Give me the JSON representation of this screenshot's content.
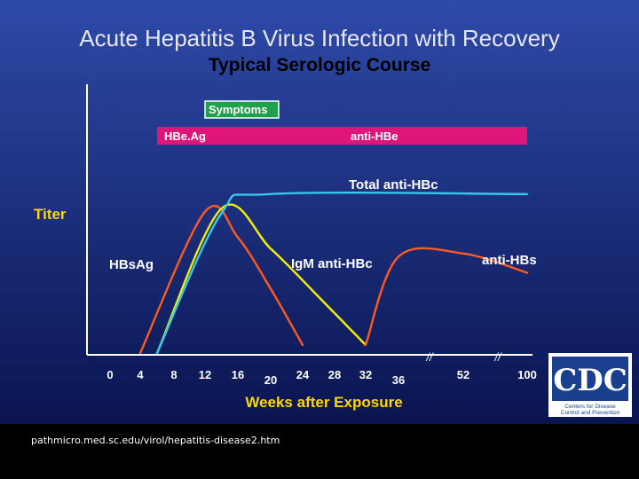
{
  "slide": {
    "title": "Acute Hepatitis B Virus Infection with Recovery",
    "subtitle": "Typical Serologic Course",
    "source_url": "pathmicro.med.sc.edu/virol/hepatitis-disease2.htm"
  },
  "logo": {
    "text": "CDC",
    "caption_line1": "Centers for Disease",
    "caption_line2": "Control and Prevention"
  },
  "colors": {
    "background_top": "#2e4aa8",
    "background_bottom": "#0a1450",
    "title": "#e6e6f0",
    "label": "#ffffff",
    "axis_label": "#ffd700",
    "symptoms_bar": "#1fa04a",
    "hbeag_bar": "#e0157a",
    "hbsag_curve": "#ff5a1e",
    "anti_hbs_curve": "#ff5a1e",
    "igm_curve": "#f5f000",
    "total_curve": "#35c8e8"
  },
  "chart_data": {
    "type": "line",
    "xlabel": "Weeks after Exposure",
    "ylabel": "Titer",
    "x_ticks": [
      "0",
      "4",
      "8",
      "12",
      "16",
      "20",
      "24",
      "28",
      "32",
      "36",
      "52",
      "100"
    ],
    "x_tick_values": [
      0,
      4,
      8,
      12,
      16,
      20,
      24,
      28,
      32,
      36,
      52,
      100
    ],
    "axis_break_markers": [
      "//",
      "//"
    ],
    "y_scale": "relative titer (no numeric ticks)",
    "bars": [
      {
        "label": "Symptoms",
        "start_week": 12,
        "end_week": 21
      },
      {
        "label": "HBe.Ag",
        "start_week": 6,
        "end_week": 14
      },
      {
        "label": "anti-HBe",
        "start_week": 14,
        "end_week": 100
      }
    ],
    "series": [
      {
        "name": "HBsAg",
        "curve": "hbsag",
        "points": [
          [
            4,
            0
          ],
          [
            12,
            88
          ],
          [
            16,
            72
          ],
          [
            20,
            40
          ],
          [
            24,
            5
          ]
        ]
      },
      {
        "name": "IgM anti-HBc",
        "curve": "igm",
        "points": [
          [
            6,
            0
          ],
          [
            14,
            90
          ],
          [
            20,
            65
          ],
          [
            26,
            35
          ],
          [
            32,
            5
          ]
        ]
      },
      {
        "name": "Total anti-HBc",
        "curve": "total",
        "points": [
          [
            6,
            0
          ],
          [
            14,
            87
          ],
          [
            20,
            99
          ],
          [
            100,
            99
          ]
        ]
      },
      {
        "name": "anti-HBs",
        "curve": "anti_hbs",
        "points": [
          [
            32,
            5
          ],
          [
            36,
            60
          ],
          [
            52,
            62
          ],
          [
            100,
            50
          ]
        ]
      }
    ]
  }
}
